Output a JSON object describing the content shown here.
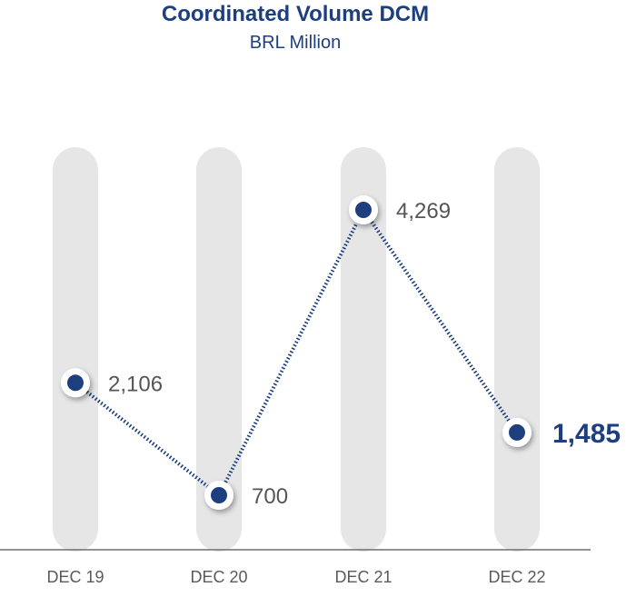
{
  "title": "Coordinated Volume DCM",
  "subtitle": "BRL Million",
  "colors": {
    "title": "#1d3f7e",
    "marker": "#1d3f7e",
    "column": "#e6e6e6",
    "label": "#555555",
    "axis": "#6f6f6f"
  },
  "chart_data": {
    "type": "line",
    "title": "Coordinated Volume DCM",
    "subtitle": "BRL Million",
    "categories": [
      "DEC 19",
      "DEC 20",
      "DEC 21",
      "DEC 22"
    ],
    "labels": [
      "2,106",
      "700",
      "4,269",
      "1,485"
    ],
    "values": [
      2106,
      700,
      4269,
      1485
    ],
    "highlight_index": 3,
    "line_style": "dotted",
    "grid": false,
    "legend": "none"
  }
}
